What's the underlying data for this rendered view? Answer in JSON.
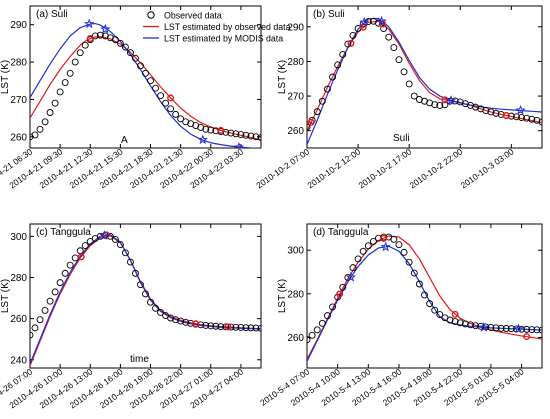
{
  "chart_data": [
    {
      "type": "line",
      "title": "(a) Suli",
      "annotation": "A",
      "xlabel": "",
      "ylabel": "LST (K)",
      "ylim": [
        257,
        295
      ],
      "yticks": [
        260,
        270,
        280,
        290
      ],
      "xlim": [
        0,
        23
      ],
      "x_tick_values": [
        0,
        3,
        6,
        9,
        12,
        15,
        18,
        21
      ],
      "x_tick_labels": [
        "2010-4-21 06:30",
        "2010-4-21 09:30",
        "2010-4-21 12:30",
        "2010-4-21 15:30",
        "2010-4-21 18:30",
        "2010-4-21 21:30",
        "2010-4-22 00:30",
        "2010-4-22 03:30"
      ],
      "legend": {
        "position": "top-right",
        "entries": [
          "Observed data",
          "LST estimated by observed data",
          "LST estimated by MODIS data"
        ]
      },
      "observed": {
        "x": [
          0,
          0.5,
          1,
          1.5,
          2,
          2.5,
          3,
          3.5,
          4,
          4.5,
          5,
          5.5,
          6,
          6.5,
          7,
          7.5,
          8,
          8.5,
          9,
          9.5,
          10,
          10.5,
          11,
          11.5,
          12,
          12.5,
          13,
          13.5,
          14,
          14.5,
          15,
          15.5,
          16,
          16.5,
          17,
          17.5,
          18,
          18.5,
          19,
          19.5,
          20,
          20.5,
          21,
          21.5,
          22,
          22.5,
          23
        ],
        "y": [
          260,
          260.5,
          262,
          264,
          266.5,
          269,
          272,
          274.5,
          277,
          280,
          282.5,
          284.5,
          286,
          287,
          287.2,
          287,
          286.5,
          286,
          285,
          284,
          282.5,
          281,
          279,
          277,
          275,
          273,
          271,
          269,
          267.5,
          266,
          264.8,
          264,
          263.5,
          263,
          262.5,
          262,
          261.8,
          261.6,
          261.4,
          261.2,
          261,
          260.8,
          260.6,
          260.4,
          260.2,
          260,
          259.8
        ]
      },
      "series": [
        {
          "name": "LST estimated by observed data",
          "color": "#e41a1c",
          "x": [
            0,
            1,
            2,
            3,
            4,
            5,
            5.5,
            6,
            6.5,
            7,
            8,
            9,
            10,
            11,
            12,
            13,
            14,
            15,
            16,
            17,
            18,
            19,
            20,
            21,
            22,
            23
          ],
          "y": [
            265,
            269.5,
            274,
            278,
            281.5,
            284.5,
            285.6,
            286.3,
            286.7,
            286.8,
            286.2,
            284.8,
            282.6,
            279.8,
            276.6,
            273.4,
            270.4,
            267.7,
            265.5,
            263.8,
            262.6,
            261.7,
            261,
            260.4,
            259.8,
            259.2
          ],
          "markers": [
            [
              6,
              286.3
            ],
            [
              14,
              270.4
            ],
            [
              19,
              261.7
            ]
          ]
        },
        {
          "name": "LST estimated by MODIS data",
          "color": "#1f2fd6",
          "x": [
            0,
            1,
            2,
            3,
            4,
            5,
            6,
            6.5,
            7,
            8,
            9,
            10,
            11,
            12,
            13,
            14,
            15,
            16,
            17,
            18,
            19,
            20,
            21,
            22,
            23
          ],
          "y": [
            270.5,
            275,
            279.5,
            283.5,
            287,
            289.2,
            290.2,
            290.3,
            289.9,
            288.2,
            285.5,
            282,
            278,
            273.6,
            269.4,
            265.7,
            262.8,
            260.7,
            259.3,
            258.4,
            257.9,
            257.5,
            257.2,
            257,
            256.9
          ],
          "markers": [
            [
              5.9,
              290.2
            ],
            [
              7.5,
              288.8
            ],
            [
              17.2,
              259.2
            ],
            [
              20.8,
              257.2
            ]
          ]
        }
      ]
    },
    {
      "type": "line",
      "title": "(b) Suli",
      "annotation": "Suli",
      "xlabel": "",
      "ylabel": "LST (K)",
      "ylim": [
        255,
        296
      ],
      "yticks": [
        260,
        270,
        280,
        290
      ],
      "xlim": [
        0,
        23
      ],
      "x_tick_values": [
        0,
        5,
        10,
        15,
        20
      ],
      "x_tick_labels": [
        "2010-10-2 07:00",
        "2010-10-2 12:00",
        "2010-10-2 17:00",
        "2010-10-2 22:00",
        "2010-10-3 03:00"
      ],
      "observed": {
        "x": [
          0,
          0.5,
          1,
          1.5,
          2,
          2.5,
          3,
          3.5,
          4,
          4.5,
          5,
          5.5,
          6,
          6.5,
          7,
          7.5,
          8,
          8.5,
          9,
          9.5,
          10,
          10.5,
          11,
          11.5,
          12,
          12.5,
          13,
          13.5,
          14,
          14.5,
          15,
          15.5,
          16,
          16.5,
          17,
          17.5,
          18,
          18.5,
          19,
          19.5,
          20,
          20.5,
          21,
          21.5,
          22,
          22.5,
          23
        ],
        "y": [
          261,
          263,
          265.5,
          268.5,
          272,
          275.5,
          279,
          282,
          285,
          287.5,
          289.5,
          290.8,
          291.5,
          291.6,
          291,
          289.5,
          287,
          284,
          280.5,
          277,
          273.5,
          270,
          269,
          268.5,
          268,
          267.5,
          267.3,
          267.5,
          268.5,
          268.6,
          268.3,
          267.8,
          267.3,
          266.8,
          266.3,
          265.8,
          265.4,
          265,
          264.7,
          264.4,
          264.2,
          264,
          263.8,
          263.6,
          263.3,
          263,
          262.5
        ]
      },
      "series": [
        {
          "name": "LST estimated by observed data",
          "color": "#e41a1c",
          "x": [
            0,
            1,
            2,
            3,
            4,
            5,
            6,
            7,
            8,
            9,
            10,
            11,
            12,
            13,
            14,
            15,
            16,
            17,
            18,
            19,
            20,
            21,
            22,
            23
          ],
          "y": [
            260,
            266,
            272.5,
            278.5,
            284,
            288.5,
            291.3,
            291.6,
            289.3,
            285,
            279.5,
            274.5,
            271,
            269.2,
            268.6,
            268.1,
            267.3,
            266.3,
            265.4,
            264.7,
            264.1,
            263.5,
            262.9,
            262.3
          ],
          "markers": [
            [
              0.4,
              262.4
            ],
            [
              4.3,
              285.2
            ],
            [
              5.5,
              289.9
            ],
            [
              7.4,
              290.8
            ],
            [
              13.5,
              268.9
            ],
            [
              19.5,
              264.4
            ]
          ]
        },
        {
          "name": "LST estimated by MODIS data",
          "color": "#1f2fd6",
          "x": [
            0,
            1,
            2,
            3,
            4,
            5,
            6,
            7,
            8,
            9,
            10,
            11,
            12,
            13,
            14,
            15,
            16,
            17,
            18,
            19,
            20,
            21,
            22,
            23
          ],
          "y": [
            256,
            263,
            270.5,
            277.5,
            284,
            289.3,
            292.3,
            292.4,
            290,
            285.6,
            280.3,
            275.4,
            272,
            270,
            268.8,
            268,
            267.4,
            266.9,
            266.5,
            266.2,
            266,
            265.8,
            265.6,
            265.4
          ],
          "markers": [
            [
              5.6,
              291.3
            ],
            [
              7.3,
              291.6
            ],
            [
              14.1,
              268.7
            ],
            [
              20.9,
              265.9
            ]
          ]
        }
      ]
    },
    {
      "type": "line",
      "title": "(c) Tanggula",
      "annotation": "time",
      "xlabel": "",
      "ylabel": "LST (K)",
      "ylim": [
        236,
        306
      ],
      "yticks": [
        240,
        260,
        280,
        300
      ],
      "xlim": [
        0,
        23
      ],
      "x_tick_values": [
        0,
        3,
        6,
        9,
        12,
        15,
        18,
        21
      ],
      "x_tick_labels": [
        "2010-4-26 07:00",
        "2010-4-26 10:00",
        "2010-4-26 13:00",
        "2010-4-26 16:00",
        "2010-4-26 19:00",
        "2010-4-26 22:00",
        "2010-4-27 01:00",
        "2010-4-27 04:00"
      ],
      "observed": {
        "x": [
          0,
          0.5,
          1,
          1.5,
          2,
          2.5,
          3,
          3.5,
          4,
          4.5,
          5,
          5.5,
          6,
          6.5,
          7,
          7.5,
          8,
          8.5,
          9,
          9.5,
          10,
          10.5,
          11,
          11.5,
          12,
          12.5,
          13,
          13.5,
          14,
          14.5,
          15,
          15.5,
          16,
          16.5,
          17,
          17.5,
          18,
          18.5,
          19,
          19.5,
          20,
          20.5,
          21,
          21.5,
          22,
          22.5,
          23
        ],
        "y": [
          252,
          255.5,
          259.5,
          264,
          268.5,
          273,
          277.5,
          282,
          286,
          289.5,
          293,
          295.5,
          297.5,
          299,
          300,
          300.5,
          300,
          298.5,
          296,
          292,
          287.5,
          282,
          276.5,
          272,
          268,
          265,
          263,
          261.5,
          260.3,
          259.5,
          258.8,
          258.2,
          257.7,
          257.3,
          257,
          256.7,
          256.5,
          256.3,
          256.1,
          256,
          255.9,
          255.8,
          255.7,
          255.6,
          255.5,
          255.4,
          255.3
        ]
      },
      "series": [
        {
          "name": "LST estimated by observed data",
          "color": "#e41a1c",
          "x": [
            0,
            1,
            2,
            3,
            4,
            5,
            6,
            7,
            8,
            9,
            10,
            11,
            12,
            13,
            14,
            15,
            16,
            17,
            18,
            19,
            20,
            21,
            22,
            23
          ],
          "y": [
            237,
            249,
            261,
            272,
            281.5,
            289.5,
            295.5,
            299.3,
            300.2,
            296.8,
            288.5,
            278,
            269.5,
            264,
            261,
            259.2,
            258,
            257.1,
            256.5,
            256.1,
            255.8,
            255.5,
            255.3,
            255.1
          ],
          "markers": [
            [
              5.1,
              290
            ],
            [
              7.6,
              300.7
            ],
            [
              16.5,
              257.5
            ],
            [
              19.7,
              256
            ]
          ]
        },
        {
          "name": "LST estimated by MODIS data",
          "color": "#1f2fd6",
          "x": [
            0,
            1,
            2,
            3,
            4,
            5,
            6,
            7,
            8,
            9,
            10,
            11,
            12,
            13,
            14,
            15,
            16,
            17,
            18,
            19,
            20,
            21,
            22,
            23
          ],
          "y": [
            238,
            250,
            262,
            273,
            282.5,
            290.3,
            296.3,
            300,
            300.8,
            297.2,
            288.3,
            277.5,
            269,
            263.5,
            260.5,
            258.7,
            257.5,
            256.7,
            256.2,
            255.8,
            255.5,
            255.3,
            255.1,
            254.9
          ],
          "markers": [
            [
              7.4,
              300.4
            ]
          ]
        }
      ]
    },
    {
      "type": "line",
      "title": "(d) Tanggula",
      "annotation": "",
      "xlabel": "",
      "ylabel": "LST (K)",
      "ylim": [
        246,
        312
      ],
      "yticks": [
        260,
        280,
        300
      ],
      "xlim": [
        0,
        23
      ],
      "x_tick_values": [
        0,
        3,
        6,
        9,
        12,
        15,
        18,
        21
      ],
      "x_tick_labels": [
        "2010-5-4 07:00",
        "2010-5-4 10:00",
        "2010-5-4 13:00",
        "2010-5-4 16:00",
        "2010-5-4 19:00",
        "2010-5-4 22:00",
        "2010-5-5 01:00",
        "2010-5-5 04:00"
      ],
      "observed": {
        "x": [
          0,
          0.5,
          1,
          1.5,
          2,
          2.5,
          3,
          3.5,
          4,
          4.5,
          5,
          5.5,
          6,
          6.5,
          7,
          7.5,
          8,
          8.5,
          9,
          9.5,
          10,
          10.5,
          11,
          11.5,
          12,
          12.5,
          13,
          13.5,
          14,
          14.5,
          15,
          15.5,
          16,
          16.5,
          17,
          17.5,
          18,
          18.5,
          19,
          19.5,
          20,
          20.5,
          21,
          21.5,
          22,
          22.5,
          23
        ],
        "y": [
          259,
          261,
          263.5,
          266.5,
          270,
          274,
          278.5,
          283,
          287.5,
          292,
          296,
          299.5,
          302,
          304,
          305.5,
          306,
          306,
          305,
          302.5,
          299,
          294.5,
          289.5,
          284.5,
          279.5,
          275.5,
          272.5,
          270.5,
          269,
          268,
          267.3,
          266.7,
          266.2,
          265.8,
          265.4,
          265.1,
          264.8,
          264.6,
          264.4,
          264.2,
          264.1,
          264,
          263.9,
          263.8,
          263.7,
          263.6,
          263.5,
          263.4
        ]
      },
      "series": [
        {
          "name": "LST estimated by observed data",
          "color": "#e41a1c",
          "x": [
            0,
            1,
            2,
            3,
            4,
            5,
            6,
            7,
            8,
            9,
            10,
            11,
            12,
            13,
            14,
            15,
            16,
            17,
            18,
            19,
            20,
            21,
            22,
            23
          ],
          "y": [
            250,
            259,
            268.5,
            278,
            287,
            294.5,
            300.5,
            304.5,
            306.5,
            306,
            302.5,
            296,
            287.5,
            279,
            272.8,
            268.8,
            266.4,
            264.7,
            263.4,
            262.4,
            261.5,
            260.7,
            260,
            259.3
          ],
          "markers": [
            [
              3.2,
              279.9
            ],
            [
              7.5,
              305.4
            ],
            [
              14.5,
              270.6
            ],
            [
              21.5,
              260.4
            ]
          ]
        },
        {
          "name": "LST estimated by MODIS data",
          "color": "#1f2fd6",
          "x": [
            0,
            1,
            2,
            3,
            4,
            5,
            6,
            7,
            8,
            9,
            10,
            11,
            12,
            13,
            14,
            15,
            16,
            17,
            18,
            19,
            20,
            21,
            22,
            23
          ],
          "y": [
            249,
            258.5,
            268,
            277,
            285.5,
            292.5,
            297.8,
            301,
            301.8,
            299.5,
            293.8,
            285.5,
            276.5,
            269.5,
            266.7,
            265.7,
            265.1,
            264.7,
            264.4,
            264.2,
            264,
            263.8,
            263.6,
            263.4
          ],
          "markers": [
            [
              4.3,
              287.6
            ],
            [
              7.7,
              301.5
            ],
            [
              17.3,
              264.6
            ],
            [
              20.7,
              263.9
            ]
          ]
        }
      ]
    }
  ]
}
